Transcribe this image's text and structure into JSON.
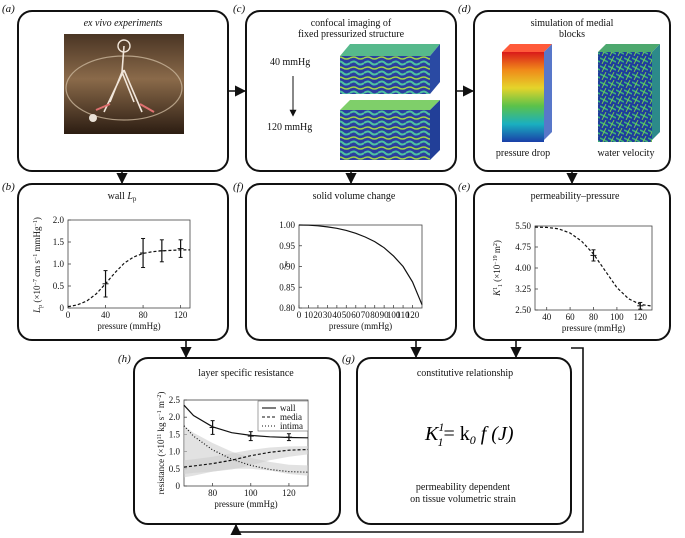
{
  "panels": {
    "a": {
      "label": "(a)",
      "title": "ex vivo experiments"
    },
    "b": {
      "label": "(b)",
      "title_main": "wall ",
      "title_sub_L": "L",
      "title_sub_p": "p"
    },
    "c": {
      "label": "(c)",
      "title_line1": "confocal imaging of",
      "title_line2": "fixed pressurized structure",
      "p_top": "40 mmHg",
      "p_bottom": "120 mmHg"
    },
    "d": {
      "label": "(d)",
      "title_line1": "simulation of medial",
      "title_line2": "blocks",
      "cap_left": "pressure drop",
      "cap_right": "water velocity"
    },
    "e": {
      "label": "(e)",
      "title": "permeability–pressure"
    },
    "f": {
      "label": "(f)",
      "title": "solid volume change"
    },
    "g": {
      "label": "(g)",
      "title": "constitutive relationship",
      "eq_K": "K",
      "eq_sub": "1",
      "eq_sup": "1",
      "eq_rhs": "= k",
      "eq_k_sub": "0",
      "eq_fJ": " f (J)",
      "note_line1": "permeability dependent",
      "note_line2": "on tissue volumetric strain"
    },
    "h": {
      "label": "(h)",
      "title": "layer specific resistance"
    }
  },
  "colors": {
    "accent_line": "#111111",
    "band": "#cfcfcf"
  },
  "chart_data": [
    {
      "id": "b",
      "type": "line",
      "xlabel": "pressure (mmHg)",
      "ylabel": "L_p (×10^-7 cm s^-1 mmHg^-1)",
      "ylabel_parts": {
        "L": "L",
        "p": "p",
        "open": " (×10",
        "e1": "−7",
        "mid": " cm s",
        "e2": "−1",
        "mid2": " mmHg",
        "e3": "−1",
        "close": ")"
      },
      "xlim": [
        0,
        130
      ],
      "ylim": [
        0,
        2.0
      ],
      "xticks": [
        0,
        40,
        80,
        120
      ],
      "yticks": [
        0,
        0.5,
        1.0,
        1.5,
        2.0
      ],
      "ytick_labels": [
        "0",
        "0.5",
        "1.0",
        "1.5",
        "2.0"
      ],
      "series": [
        {
          "style": "dashed",
          "x": [
            0,
            10,
            20,
            30,
            40,
            50,
            60,
            70,
            80,
            90,
            100,
            110,
            120,
            130
          ],
          "y": [
            0.03,
            0.07,
            0.16,
            0.32,
            0.55,
            0.8,
            1.02,
            1.16,
            1.24,
            1.28,
            1.3,
            1.31,
            1.32,
            1.32
          ]
        }
      ],
      "points": [
        {
          "x": 40,
          "y": 0.55,
          "err": 0.3
        },
        {
          "x": 80,
          "y": 1.25,
          "err": 0.33
        },
        {
          "x": 100,
          "y": 1.3,
          "err": 0.25
        },
        {
          "x": 120,
          "y": 1.35,
          "err": 0.2
        }
      ]
    },
    {
      "id": "f",
      "type": "line",
      "xlabel": "pressure (mmHg)",
      "ylabel": "J",
      "xlim": [
        0,
        130
      ],
      "ylim": [
        0.8,
        1.0
      ],
      "xticks": [
        0,
        10,
        20,
        30,
        40,
        50,
        60,
        70,
        80,
        90,
        100,
        110,
        120
      ],
      "yticks": [
        0.8,
        0.85,
        0.9,
        0.95,
        1.0
      ],
      "ytick_labels": [
        "0.80",
        "0.85",
        "0.90",
        "0.95",
        "1.00"
      ],
      "series": [
        {
          "style": "solid",
          "x": [
            0,
            10,
            20,
            30,
            40,
            50,
            60,
            70,
            80,
            90,
            100,
            110,
            120,
            130
          ],
          "y": [
            1.0,
            0.9995,
            0.998,
            0.9955,
            0.992,
            0.987,
            0.98,
            0.971,
            0.96,
            0.945,
            0.925,
            0.9,
            0.863,
            0.808
          ]
        }
      ]
    },
    {
      "id": "e",
      "type": "line",
      "xlabel": "pressure (mmHg)",
      "ylabel_parts": {
        "K": "K",
        "sup": "1",
        "sub": "1",
        "open": " (×10",
        "e1": "−19",
        "mid": " m",
        "e2": "2",
        "close": ")"
      },
      "xlim": [
        30,
        130
      ],
      "ylim": [
        2.5,
        5.5
      ],
      "xticks": [
        40,
        60,
        80,
        100,
        120
      ],
      "yticks": [
        2.5,
        3.25,
        4.0,
        4.75,
        5.5
      ],
      "ytick_labels": [
        "2.50",
        "3.25",
        "4.00",
        "4.75",
        "5.50"
      ],
      "series": [
        {
          "style": "dashed",
          "x": [
            30,
            40,
            50,
            60,
            70,
            80,
            90,
            100,
            110,
            120,
            130
          ],
          "y": [
            5.46,
            5.45,
            5.4,
            5.25,
            4.95,
            4.5,
            3.9,
            3.3,
            2.9,
            2.7,
            2.64
          ]
        }
      ],
      "points": [
        {
          "x": 80,
          "y": 4.45,
          "err": 0.2
        },
        {
          "x": 120,
          "y": 2.65,
          "err": 0.12
        }
      ]
    },
    {
      "id": "h",
      "type": "line",
      "xlabel": "pressure (mmHg)",
      "ylabel_parts": {
        "open": "resistance (×10",
        "e1": "11",
        "mid": " kg s",
        "e2": "−1",
        "mid2": " m",
        "e3": "−2",
        "close": ")"
      },
      "xlim": [
        65,
        130
      ],
      "ylim": [
        0,
        2.5
      ],
      "xticks": [
        80,
        100,
        120
      ],
      "yticks": [
        0,
        0.5,
        1.0,
        1.5,
        2.0,
        2.5
      ],
      "ytick_labels": [
        "0",
        "0.5",
        "1.0",
        "1.5",
        "2.0",
        "2.5"
      ],
      "legend": [
        "wall",
        "media",
        "intima"
      ],
      "series": [
        {
          "name": "wall",
          "style": "solid",
          "x": [
            65,
            70,
            80,
            90,
            100,
            110,
            120,
            130
          ],
          "y": [
            2.35,
            2.05,
            1.72,
            1.55,
            1.47,
            1.43,
            1.41,
            1.4
          ]
        },
        {
          "name": "media",
          "style": "dashed",
          "x": [
            65,
            70,
            80,
            90,
            100,
            110,
            120,
            130
          ],
          "y": [
            0.55,
            0.58,
            0.65,
            0.75,
            0.88,
            0.98,
            1.04,
            1.06
          ]
        },
        {
          "name": "intima",
          "style": "dotted",
          "x": [
            65,
            70,
            80,
            90,
            100,
            110,
            120,
            130
          ],
          "y": [
            1.75,
            1.45,
            1.05,
            0.78,
            0.6,
            0.48,
            0.42,
            0.4
          ]
        }
      ],
      "bands": [
        {
          "upper": [
            1.75,
            1.55,
            1.25,
            1.0,
            0.82,
            0.7,
            0.62,
            0.6
          ],
          "lower": [
            0.25,
            0.3,
            0.42,
            0.5,
            0.5,
            0.45,
            0.35,
            0.3
          ]
        },
        {
          "upper": [
            0.75,
            0.78,
            0.85,
            0.95,
            1.05,
            1.12,
            1.15,
            1.16
          ],
          "lower": [
            0.35,
            0.38,
            0.42,
            0.48,
            0.6,
            0.75,
            0.85,
            0.92
          ]
        }
      ],
      "points": [
        {
          "x": 80,
          "y": 1.7,
          "err": 0.2
        },
        {
          "x": 100,
          "y": 1.45,
          "err": 0.13
        },
        {
          "x": 120,
          "y": 1.42,
          "err": 0.1
        }
      ]
    }
  ]
}
